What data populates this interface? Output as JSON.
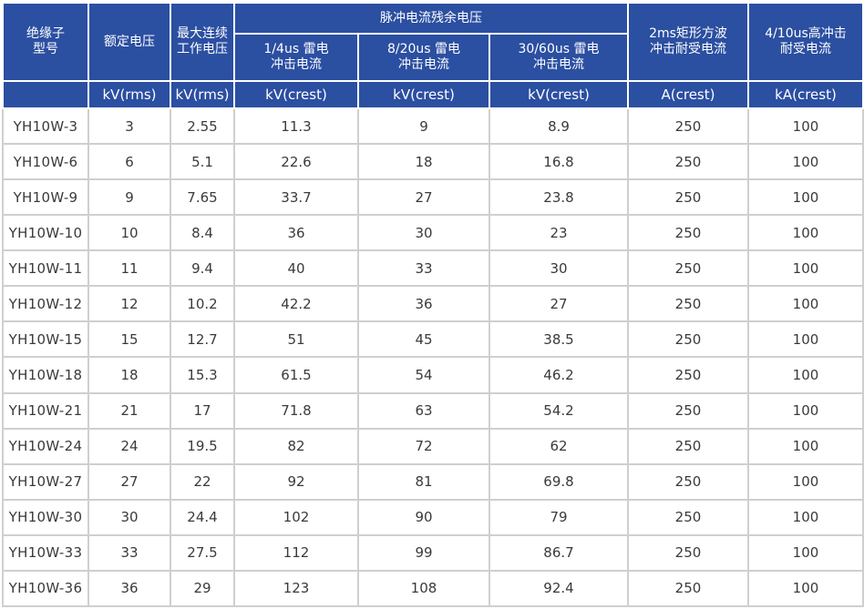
{
  "header": {
    "model": "绝缘子\n型号",
    "rated_voltage": "额定电压",
    "max_continuous": "最大连续\n工作电压",
    "residual_group": "脉冲电流残余电压",
    "res_1_4": "1/4us 雷电\n冲击电流",
    "res_8_20": "8/20us 雷电\n冲击电流",
    "res_30_60": "30/60us 雷电\n冲击电流",
    "rect_2ms": "2ms矩形方波\n冲击耐受电流",
    "high_4_10": "4/10us高冲击\n耐受电流"
  },
  "units": [
    "kV(rms)",
    "kV(rms)",
    "kV(crest)",
    "kV(crest)",
    "kV(crest)",
    "A(crest)",
    "kA(crest)"
  ],
  "colors": {
    "header_bg": "#2b4fa1",
    "header_text": "#ffffff",
    "grid": "#cfcfcf",
    "body_text": "#3a3a3a"
  },
  "rows": [
    [
      "YH10W-3",
      "3",
      "2.55",
      "11.3",
      "9",
      "8.9",
      "250",
      "100"
    ],
    [
      "YH10W-6",
      "6",
      "5.1",
      "22.6",
      "18",
      "16.8",
      "250",
      "100"
    ],
    [
      "YH10W-9",
      "9",
      "7.65",
      "33.7",
      "27",
      "23.8",
      "250",
      "100"
    ],
    [
      "YH10W-10",
      "10",
      "8.4",
      "36",
      "30",
      "23",
      "250",
      "100"
    ],
    [
      "YH10W-11",
      "11",
      "9.4",
      "40",
      "33",
      "30",
      "250",
      "100"
    ],
    [
      "YH10W-12",
      "12",
      "10.2",
      "42.2",
      "36",
      "27",
      "250",
      "100"
    ],
    [
      "YH10W-15",
      "15",
      "12.7",
      "51",
      "45",
      "38.5",
      "250",
      "100"
    ],
    [
      "YH10W-18",
      "18",
      "15.3",
      "61.5",
      "54",
      "46.2",
      "250",
      "100"
    ],
    [
      "YH10W-21",
      "21",
      "17",
      "71.8",
      "63",
      "54.2",
      "250",
      "100"
    ],
    [
      "YH10W-24",
      "24",
      "19.5",
      "82",
      "72",
      "62",
      "250",
      "100"
    ],
    [
      "YH10W-27",
      "27",
      "22",
      "92",
      "81",
      "69.8",
      "250",
      "100"
    ],
    [
      "YH10W-30",
      "30",
      "24.4",
      "102",
      "90",
      "79",
      "250",
      "100"
    ],
    [
      "YH10W-33",
      "33",
      "27.5",
      "112",
      "99",
      "86.7",
      "250",
      "100"
    ],
    [
      "YH10W-36",
      "36",
      "29",
      "123",
      "108",
      "92.4",
      "250",
      "100"
    ]
  ]
}
